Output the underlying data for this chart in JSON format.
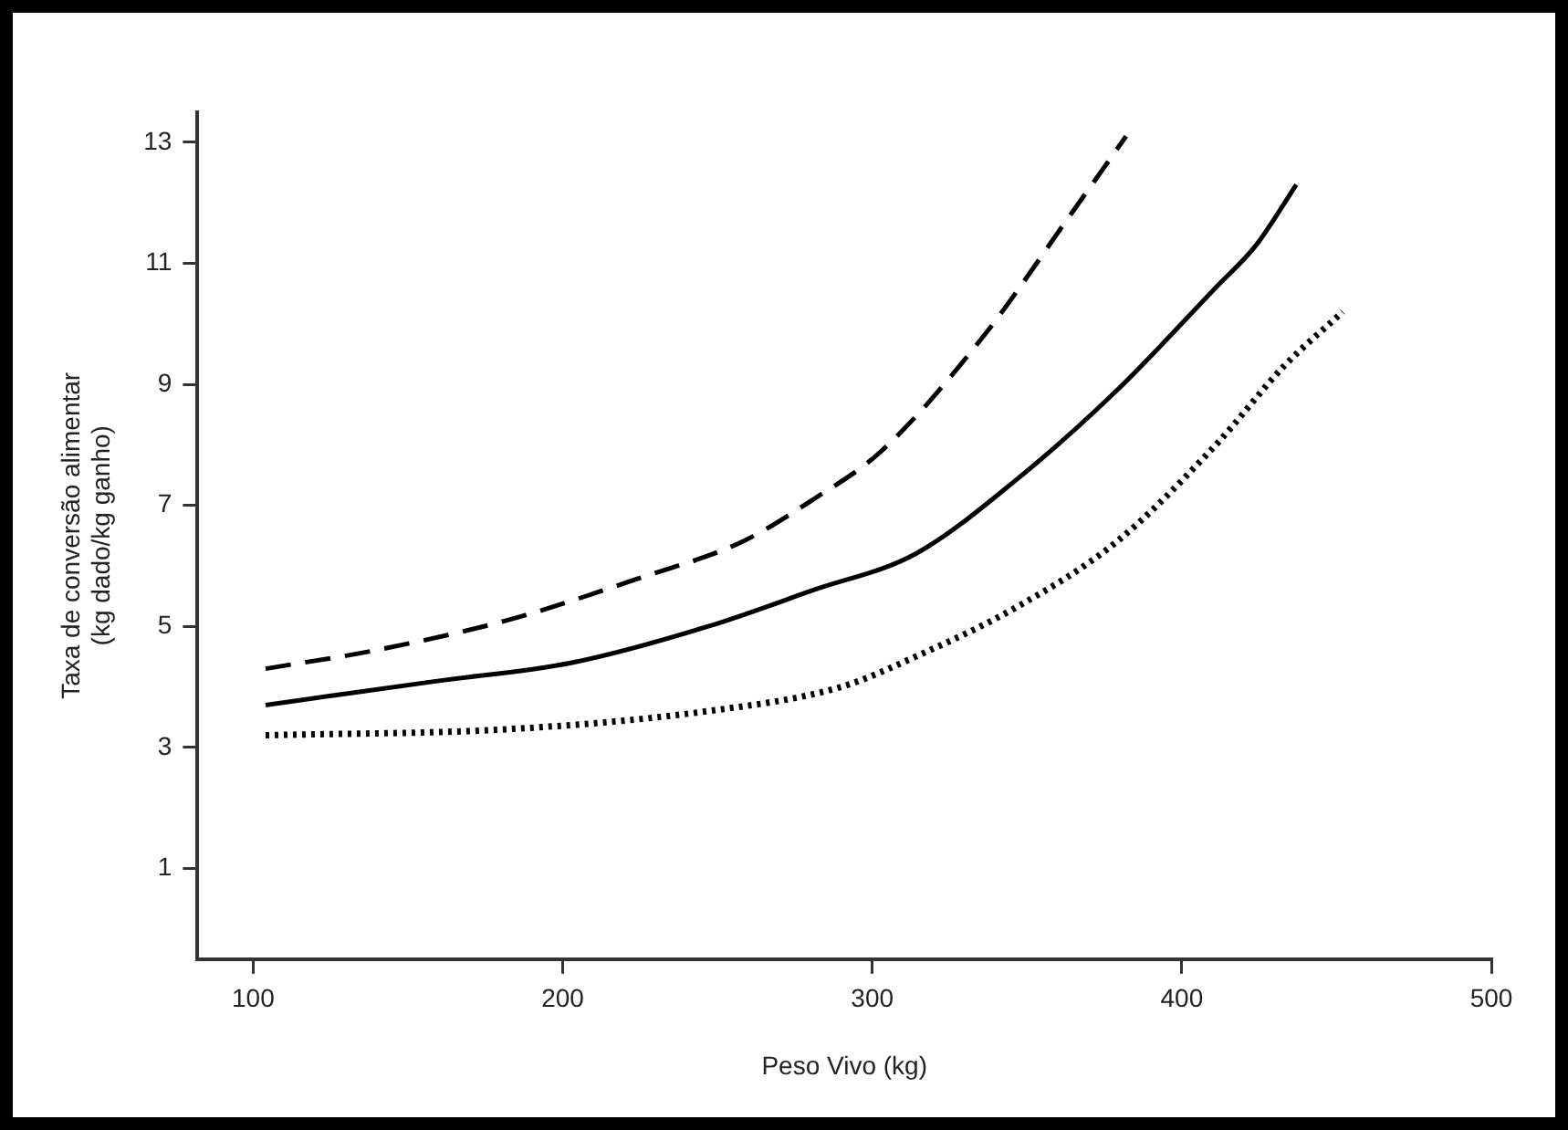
{
  "chart_data": {
    "type": "line",
    "xlabel": "Peso Vivo (kg)",
    "ylabel": "Taxa de conversão alimentar\n(kg dado/kg ganho)",
    "xlim": [
      82,
      500
    ],
    "xticks": [
      100,
      200,
      300,
      400,
      500
    ],
    "ylim": [
      -0.5,
      13.5
    ],
    "yticks": [
      1,
      3,
      5,
      7,
      9,
      11,
      13
    ],
    "grid": false,
    "legend": false,
    "marker": "none",
    "series": [
      {
        "color": "#000000",
        "line_style": "dashed",
        "x": [
          104,
          139,
          182,
          225,
          258,
          281,
          303,
          336,
          364,
          382
        ],
        "values": [
          4.3,
          4.6,
          5.1,
          5.8,
          6.4,
          7.1,
          7.9,
          9.8,
          11.8,
          13.1
        ]
      },
      {
        "color": "#000000",
        "line_style": "solid",
        "x": [
          104,
          160,
          203,
          247,
          281,
          314,
          346,
          379,
          411,
          424,
          437
        ],
        "values": [
          3.7,
          4.1,
          4.4,
          5.0,
          5.6,
          6.2,
          7.4,
          8.9,
          10.6,
          11.3,
          12.3
        ]
      },
      {
        "color": "#000000",
        "line_style": "dotted",
        "x": [
          104,
          182,
          247,
          290,
          314,
          346,
          379,
          411,
          433,
          452
        ],
        "values": [
          3.2,
          3.3,
          3.6,
          4.0,
          4.5,
          5.3,
          6.4,
          8.0,
          9.3,
          10.2
        ]
      }
    ]
  }
}
